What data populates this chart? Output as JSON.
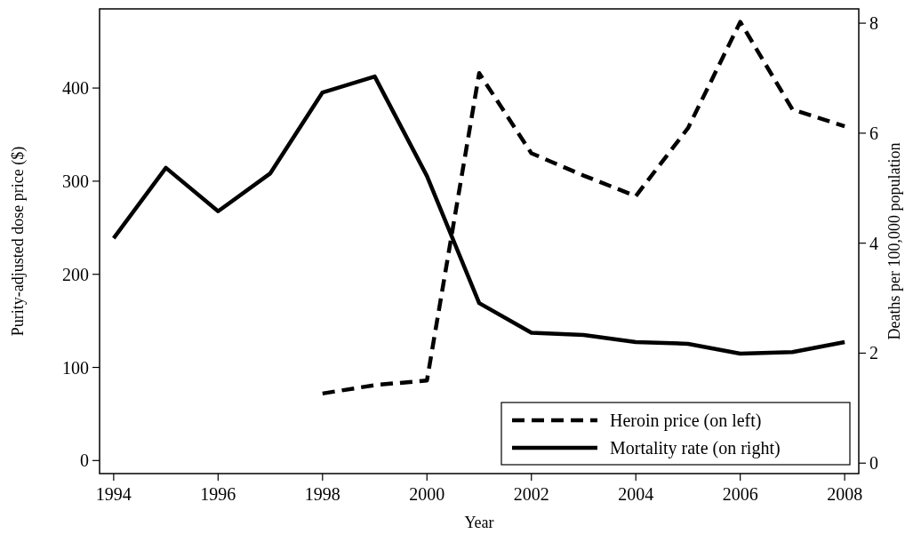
{
  "chart_data": {
    "type": "line",
    "xlabel": "Year",
    "ylabel": "Purity-adjusted dose price ($)",
    "y2label": "Deaths per 100,000 population",
    "xlim": [
      1993.73,
      2008.27
    ],
    "xticks": [
      1994,
      1996,
      1998,
      2000,
      2002,
      2004,
      2006,
      2008
    ],
    "ylim": [
      -14,
      485
    ],
    "yticks": [
      0,
      100,
      200,
      300,
      400
    ],
    "y2lim": [
      -0.19,
      8.26
    ],
    "y2ticks": [
      0,
      2,
      4,
      6,
      8
    ],
    "grid": false,
    "legend": "bottom right",
    "series": [
      {
        "name": "Heroin price (on left)",
        "color": "#000000",
        "line_style": "dashed",
        "x": [
          1998,
          1999,
          2000,
          2001,
          2002,
          2003,
          2004,
          2005,
          2006,
          2007,
          2008
        ],
        "values": [
          72,
          81,
          86,
          416,
          330,
          306,
          284,
          357,
          471,
          377,
          359
        ]
      },
      {
        "name": "Mortality rate (on right)",
        "color": "#000000",
        "line_style": "solid",
        "axis": "y2",
        "x": [
          1994,
          1995,
          1996,
          1997,
          1998,
          1999,
          2000,
          2001,
          2002,
          2003,
          2004,
          2005,
          2006,
          2007,
          2008
        ],
        "values": [
          4.09,
          5.37,
          4.58,
          5.27,
          6.74,
          7.03,
          5.22,
          2.91,
          2.37,
          2.33,
          2.2,
          2.17,
          1.99,
          2.02,
          2.2
        ]
      }
    ]
  }
}
